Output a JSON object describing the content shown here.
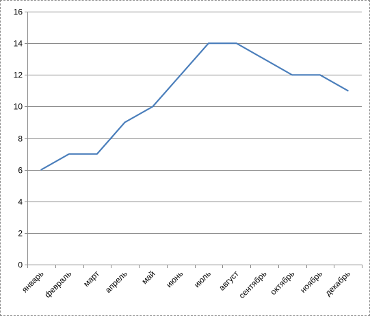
{
  "chart_data": {
    "type": "line",
    "title": "",
    "xlabel": "",
    "ylabel": "",
    "categories": [
      "январь",
      "февраль",
      "март",
      "апрель",
      "май",
      "июнь",
      "июль",
      "август",
      "сентябрь",
      "октябрь",
      "ноябрь",
      "декабрь"
    ],
    "series": [
      {
        "values": [
          6,
          7,
          7,
          9,
          10,
          12,
          14,
          14,
          13,
          12,
          12,
          11
        ],
        "color": "#4a7ebb"
      }
    ],
    "ylim": [
      0,
      16
    ],
    "yticks": [
      0,
      2,
      4,
      6,
      8,
      10,
      12,
      14,
      16
    ],
    "grid": true,
    "legend": "none"
  }
}
